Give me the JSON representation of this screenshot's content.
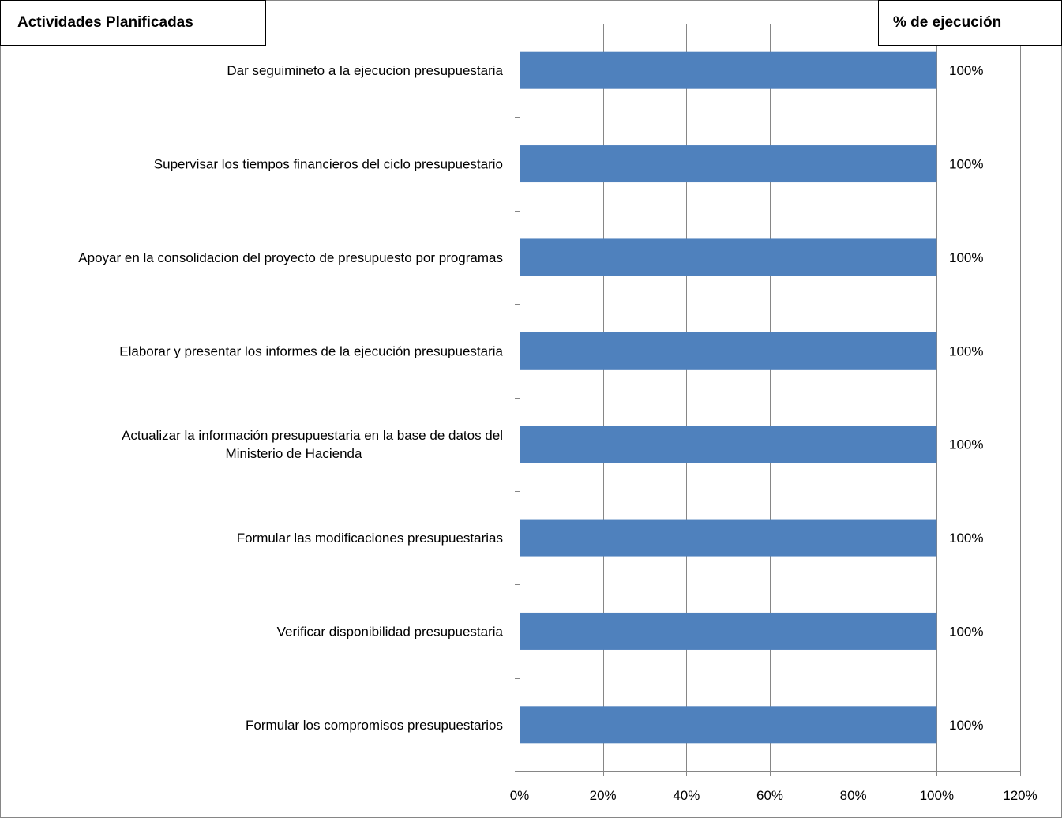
{
  "headers": {
    "left": "Actividades Planificadas",
    "right": "% de ejecución"
  },
  "colors": {
    "bar": "#4F81BD",
    "grid": "#868686",
    "frame": "#868686"
  },
  "chart_data": {
    "type": "bar",
    "orientation": "horizontal",
    "categories": [
      [
        "Dar seguimineto a la ejecucion presupuestaria"
      ],
      [
        "Supervisar los tiempos financieros del ciclo presupuestario"
      ],
      [
        "Apoyar en la consolidacion del proyecto de presupuesto por programas"
      ],
      [
        "Elaborar y presentar los informes de la ejecución presupuestaria"
      ],
      [
        "Actualizar la información presupuestaria en la base de datos del",
        "Ministerio de Hacienda"
      ],
      [
        "Formular las modificaciones presupuestarias"
      ],
      [
        "Verificar disponibilidad presupuestaria"
      ],
      [
        "Formular los compromisos presupuestarios"
      ]
    ],
    "values": [
      100,
      100,
      100,
      100,
      100,
      100,
      100,
      100
    ],
    "data_labels": [
      "100%",
      "100%",
      "100%",
      "100%",
      "100%",
      "100%",
      "100%",
      "100%"
    ],
    "xlim": [
      0,
      120
    ],
    "xticks": [
      0,
      20,
      40,
      60,
      80,
      100,
      120
    ],
    "xtick_labels": [
      "0%",
      "20%",
      "40%",
      "60%",
      "80%",
      "100%",
      "120%"
    ],
    "grid": true,
    "legend": "none"
  }
}
